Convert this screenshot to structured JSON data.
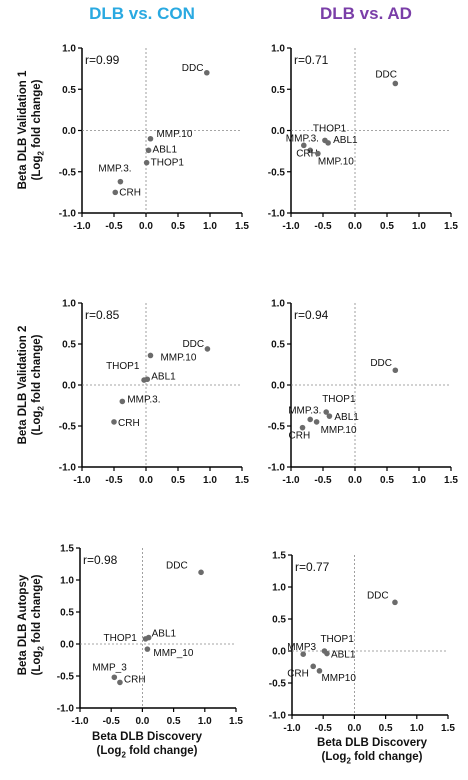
{
  "col_titles": [
    {
      "text": "DLB vs. CON",
      "color": "#29a9e1"
    },
    {
      "text": "DLB vs. AD",
      "color": "#7a3ea8"
    }
  ],
  "row_labels": [
    {
      "title": "Beta DLB Validation 1",
      "unit_pre": "(Log",
      "unit_sub": "2",
      "unit_post": " fold change)"
    },
    {
      "title": "Beta DLB Validation 2",
      "unit_pre": "(Log",
      "unit_sub": "2",
      "unit_post": " fold change)"
    },
    {
      "title": "Beta DLB Autopsy",
      "unit_pre": "(Log",
      "unit_sub": "2",
      "unit_post": " fold change)"
    }
  ],
  "x_label": {
    "title": "Beta DLB Discovery",
    "unit_pre": "(Log",
    "unit_sub": "2",
    "unit_post": " fold change)"
  },
  "point_color": "#6b6b6b",
  "chart_data": [
    {
      "type": "scatter",
      "row": 0,
      "col": 0,
      "annotation": "r=0.99",
      "xlim": [
        -1.0,
        1.5
      ],
      "ylim": [
        -1.0,
        1.0
      ],
      "xticks": [
        "-1.0",
        "-0.5",
        "0.0",
        "0.5",
        "1.0",
        "1.5"
      ],
      "yticks": [
        "1.0",
        "0.5",
        "0.0",
        "-0.5",
        "-1.0"
      ],
      "points": [
        {
          "label": "DDC",
          "x": 0.95,
          "y": 0.7
        },
        {
          "label": "MMP.10",
          "x": 0.07,
          "y": -0.1
        },
        {
          "label": "ABL1",
          "x": 0.04,
          "y": -0.24
        },
        {
          "label": "THOP1",
          "x": 0.01,
          "y": -0.39
        },
        {
          "label": "MMP.3.",
          "x": -0.4,
          "y": -0.62
        },
        {
          "label": "CRH",
          "x": -0.48,
          "y": -0.75
        }
      ]
    },
    {
      "type": "scatter",
      "row": 0,
      "col": 1,
      "annotation": "r=0.71",
      "xlim": [
        -1.0,
        1.5
      ],
      "ylim": [
        -1.0,
        1.0
      ],
      "xticks": [
        "-1.0",
        "-0.5",
        "0.0",
        "0.5",
        "1.0",
        "1.5"
      ],
      "yticks": [
        "1.0",
        "0.5",
        "0.0",
        "-0.5",
        "-1.0"
      ],
      "points": [
        {
          "label": "DDC",
          "x": 0.63,
          "y": 0.57
        },
        {
          "label": "THOP1",
          "x": -0.47,
          "y": -0.12
        },
        {
          "label": "ABL1",
          "x": -0.42,
          "y": -0.15
        },
        {
          "label": "MMP.3.",
          "x": -0.8,
          "y": -0.18
        },
        {
          "label": "CRH",
          "x": -0.7,
          "y": -0.24
        },
        {
          "label": "MMP.10",
          "x": -0.58,
          "y": -0.28
        }
      ]
    },
    {
      "type": "scatter",
      "row": 1,
      "col": 0,
      "annotation": "r=0.85",
      "xlim": [
        -1.0,
        1.5
      ],
      "ylim": [
        -1.0,
        1.0
      ],
      "xticks": [
        "-1.0",
        "-0.5",
        "0.0",
        "0.5",
        "1.0",
        "1.5"
      ],
      "yticks": [
        "1.0",
        "0.5",
        "0.0",
        "-0.5",
        "-1.0"
      ],
      "points": [
        {
          "label": "DDC",
          "x": 0.96,
          "y": 0.44
        },
        {
          "label": "MMP.10",
          "x": 0.07,
          "y": 0.36
        },
        {
          "label": "ABL1",
          "x": 0.02,
          "y": 0.07
        },
        {
          "label": "THOP1",
          "x": -0.03,
          "y": 0.06
        },
        {
          "label": "MMP.3.",
          "x": -0.37,
          "y": -0.2
        },
        {
          "label": "CRH",
          "x": -0.5,
          "y": -0.45
        }
      ]
    },
    {
      "type": "scatter",
      "row": 1,
      "col": 1,
      "annotation": "r=0.94",
      "xlim": [
        -1.0,
        1.5
      ],
      "ylim": [
        -1.0,
        1.0
      ],
      "xticks": [
        "-1.0",
        "-0.5",
        "0.0",
        "0.5",
        "1.0",
        "1.5"
      ],
      "yticks": [
        "1.0",
        "0.5",
        "0.0",
        "-0.5",
        "-1.0"
      ],
      "points": [
        {
          "label": "DDC",
          "x": 0.63,
          "y": 0.18
        },
        {
          "label": "THOP1",
          "x": -0.45,
          "y": -0.33
        },
        {
          "label": "ABL1",
          "x": -0.4,
          "y": -0.38
        },
        {
          "label": "MMP.3.",
          "x": -0.7,
          "y": -0.42
        },
        {
          "label": "MMP.10",
          "x": -0.6,
          "y": -0.45
        },
        {
          "label": "CRH",
          "x": -0.82,
          "y": -0.52
        }
      ]
    },
    {
      "type": "scatter",
      "row": 2,
      "col": 0,
      "annotation": "r=0.98",
      "xlim": [
        -1.0,
        1.5
      ],
      "ylim": [
        -1.0,
        1.5
      ],
      "xticks": [
        "-1.0",
        "-0.5",
        "0.0",
        "0.5",
        "1.0",
        "1.5"
      ],
      "yticks": [
        "1.5",
        "1.0",
        "0.5",
        "0.0",
        "-0.5",
        "-1.0"
      ],
      "points": [
        {
          "label": "DDC",
          "x": 0.94,
          "y": 1.12
        },
        {
          "label": "THOP1",
          "x": 0.05,
          "y": 0.08
        },
        {
          "label": "ABL1",
          "x": 0.1,
          "y": 0.1
        },
        {
          "label": "MMP_10",
          "x": 0.08,
          "y": -0.08
        },
        {
          "label": "MMP_3",
          "x": -0.45,
          "y": -0.52
        },
        {
          "label": "CRH",
          "x": -0.36,
          "y": -0.6
        }
      ]
    },
    {
      "type": "scatter",
      "row": 2,
      "col": 1,
      "annotation": "r=0.77",
      "xlim": [
        -1.0,
        1.5
      ],
      "ylim": [
        -1.0,
        1.5
      ],
      "xticks": [
        "-1.0",
        "-0.5",
        "0.0",
        "0.5",
        "1.0",
        "1.5"
      ],
      "yticks": [
        "1.5",
        "1.0",
        "0.5",
        "0.0",
        "-0.5",
        "-1.0"
      ],
      "points": [
        {
          "label": "DDC",
          "x": 0.65,
          "y": 0.76
        },
        {
          "label": "THOP1",
          "x": -0.48,
          "y": 0.0
        },
        {
          "label": "ABL1",
          "x": -0.44,
          "y": -0.04
        },
        {
          "label": "MMP3",
          "x": -0.82,
          "y": -0.05
        },
        {
          "label": "CRH",
          "x": -0.66,
          "y": -0.24
        },
        {
          "label": "MMP10",
          "x": -0.56,
          "y": -0.31
        }
      ]
    }
  ]
}
